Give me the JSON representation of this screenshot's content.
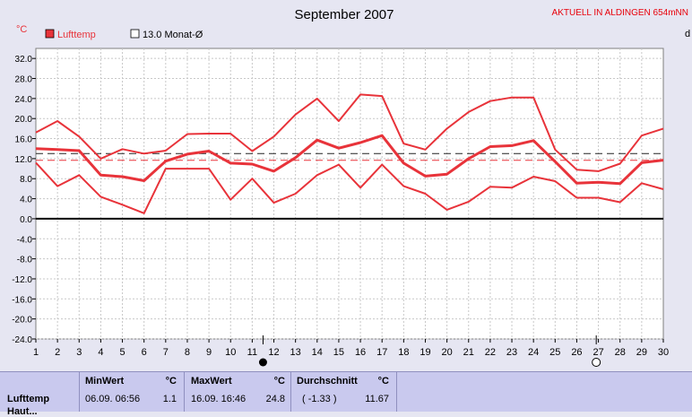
{
  "header": {
    "title": "September 2007",
    "status": "AKTUELL IN ALDINGEN 654mNN",
    "unit_left": "°C",
    "unit_right": "d"
  },
  "legend": {
    "series_label": "Lufttemp",
    "avg_label": "13.0 Monat-Ø"
  },
  "chart_data": {
    "type": "line",
    "title": "September 2007",
    "ylabel": "°C",
    "ylim": [
      -24,
      34
    ],
    "yticks": [
      32.0,
      28.0,
      24.0,
      20.0,
      16.0,
      12.0,
      8.0,
      4.0,
      0.0,
      -4.0,
      -8.0,
      -12.0,
      -16.0,
      -20.0,
      -24.0
    ],
    "x": [
      1,
      2,
      3,
      4,
      5,
      6,
      7,
      8,
      9,
      10,
      11,
      12,
      13,
      14,
      15,
      16,
      17,
      18,
      19,
      20,
      21,
      22,
      23,
      24,
      25,
      26,
      27,
      28,
      29,
      30
    ],
    "grid": true,
    "series": [
      {
        "name": "Lufttemp",
        "role": "max",
        "values": [
          17.2,
          19.5,
          16.4,
          12.0,
          13.9,
          13.0,
          13.6,
          16.9,
          17.0,
          17.0,
          13.5,
          16.4,
          20.8,
          24.0,
          19.5,
          24.8,
          24.5,
          15.0,
          13.8,
          18.0,
          21.3,
          23.5,
          24.2,
          24.2,
          13.8,
          9.8,
          9.5,
          11.0,
          16.6,
          18.0
        ]
      },
      {
        "name": "Lufttemp",
        "role": "mean",
        "values": [
          14.0,
          13.8,
          13.6,
          8.7,
          8.4,
          7.6,
          11.5,
          12.9,
          13.5,
          11.1,
          10.9,
          9.5,
          12.2,
          15.7,
          14.1,
          15.2,
          16.6,
          11.1,
          8.5,
          8.9,
          12.0,
          14.4,
          14.6,
          15.6,
          11.4,
          7.1,
          7.3,
          7.0,
          11.2,
          11.7
        ]
      },
      {
        "name": "Lufttemp",
        "role": "min",
        "values": [
          11.2,
          6.5,
          8.7,
          4.4,
          2.8,
          1.1,
          10.0,
          10.0,
          10.0,
          3.8,
          8.0,
          3.2,
          5.0,
          8.7,
          10.8,
          6.2,
          10.8,
          6.5,
          5.0,
          1.8,
          3.4,
          6.4,
          6.2,
          8.4,
          7.5,
          4.2,
          4.2,
          3.3,
          7.1,
          5.9
        ]
      }
    ],
    "month_avg": 13.0,
    "period_avg": 11.67,
    "markers": [
      {
        "day": 11.5,
        "symbol": "filled-circle"
      },
      {
        "day": 26.9,
        "symbol": "open-circle"
      }
    ]
  },
  "stats": {
    "row_label": "Lufttemp",
    "row_label_2": "Haut...",
    "min": {
      "header": "MinWert",
      "unit": "°C",
      "datetime": "06.09.  06:56",
      "value": "1.1"
    },
    "max": {
      "header": "MaxWert",
      "unit": "°C",
      "datetime": "16.09.  16:46",
      "value": "24.8"
    },
    "avg": {
      "header": "Durchschnitt",
      "unit": "°C",
      "delta": "( -1.33 )",
      "value": "11.67"
    }
  },
  "colors": {
    "series": "#e8333a",
    "avg_line": "#222222",
    "grid": "#c8c8c8",
    "zero": "#000000",
    "status": "#e8000a"
  }
}
